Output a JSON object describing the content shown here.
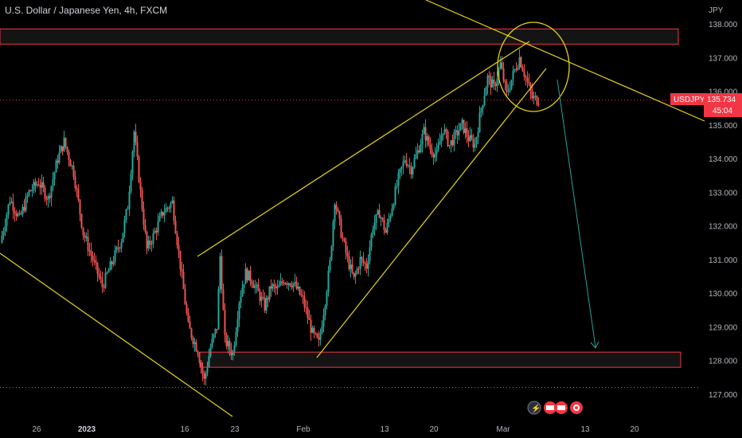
{
  "header": {
    "title": "U.S. Dollar / Japanese Yen, 4h, FXCM"
  },
  "colors": {
    "up": "#26a69a",
    "down": "#ef5350",
    "trend": "#e6d21a",
    "zone": "#f23645",
    "target": "#2aa198",
    "price": "#f23645"
  },
  "price_badge": {
    "symbol": "USDJPY",
    "price": "135.734",
    "countdown": "45:04"
  },
  "icons": [
    "lightning-icon",
    "flag-us-icon",
    "flag-us-icon",
    "target-icon"
  ],
  "chart_data": {
    "type": "candlestick",
    "symbol": "USDJPY",
    "timeframe": "4h",
    "y_unit": "JPY",
    "ylim": [
      126.7,
      138.3
    ],
    "y_ticks": [
      127.0,
      128.0,
      129.0,
      130.0,
      131.0,
      132.0,
      133.0,
      134.0,
      135.0,
      136.0,
      137.0,
      138.0
    ],
    "x_ticks": [
      {
        "label": "26",
        "bold": false
      },
      {
        "label": "2023",
        "bold": true
      },
      {
        "label": "16",
        "bold": false
      },
      {
        "label": "23",
        "bold": false
      },
      {
        "label": "Feb",
        "bold": false
      },
      {
        "label": "13",
        "bold": false
      },
      {
        "label": "20",
        "bold": false
      },
      {
        "label": "Mar",
        "bold": false
      },
      {
        "label": "13",
        "bold": false
      },
      {
        "label": "20",
        "bold": false
      }
    ],
    "current_price": 135.734,
    "horizontal_zones": [
      {
        "name": "resistance-zone",
        "low": 137.4,
        "high": 137.85
      },
      {
        "name": "support-zone",
        "low": 127.8,
        "high": 128.25
      }
    ],
    "price_path": [
      [
        0,
        131.5
      ],
      [
        6,
        132.8
      ],
      [
        12,
        132.2
      ],
      [
        18,
        133.0
      ],
      [
        24,
        133.3
      ],
      [
        30,
        132.8
      ],
      [
        36,
        134.0
      ],
      [
        40,
        134.5
      ],
      [
        46,
        133.6
      ],
      [
        52,
        131.8
      ],
      [
        58,
        131.0
      ],
      [
        64,
        130.2
      ],
      [
        70,
        130.9
      ],
      [
        76,
        131.6
      ],
      [
        80,
        132.6
      ],
      [
        84,
        134.8
      ],
      [
        88,
        133.0
      ],
      [
        92,
        131.3
      ],
      [
        96,
        131.7
      ],
      [
        102,
        132.4
      ],
      [
        108,
        132.7
      ],
      [
        112,
        131.2
      ],
      [
        118,
        129.0
      ],
      [
        124,
        128.3
      ],
      [
        128,
        127.4
      ],
      [
        132,
        128.4
      ],
      [
        136,
        129.0
      ],
      [
        138,
        131.1
      ],
      [
        141,
        128.6
      ],
      [
        146,
        128.2
      ],
      [
        150,
        129.8
      ],
      [
        154,
        130.6
      ],
      [
        158,
        130.4
      ],
      [
        162,
        130.0
      ],
      [
        166,
        129.6
      ],
      [
        170,
        130.2
      ],
      [
        174,
        130.1
      ],
      [
        178,
        130.4
      ],
      [
        184,
        130.3
      ],
      [
        190,
        129.8
      ],
      [
        196,
        128.8
      ],
      [
        200,
        128.5
      ],
      [
        204,
        129.8
      ],
      [
        207,
        130.9
      ],
      [
        210,
        132.8
      ],
      [
        214,
        131.8
      ],
      [
        218,
        131.0
      ],
      [
        222,
        130.4
      ],
      [
        226,
        131.0
      ],
      [
        230,
        130.8
      ],
      [
        234,
        132.0
      ],
      [
        238,
        132.4
      ],
      [
        242,
        131.8
      ],
      [
        246,
        132.6
      ],
      [
        250,
        133.4
      ],
      [
        254,
        134.0
      ],
      [
        258,
        133.7
      ],
      [
        262,
        134.2
      ],
      [
        266,
        134.8
      ],
      [
        270,
        134.3
      ],
      [
        274,
        134.1
      ],
      [
        278,
        134.9
      ],
      [
        282,
        134.4
      ],
      [
        286,
        134.7
      ],
      [
        290,
        135.0
      ],
      [
        294,
        134.6
      ],
      [
        298,
        134.4
      ],
      [
        302,
        135.5
      ],
      [
        306,
        136.4
      ],
      [
        310,
        136.1
      ],
      [
        314,
        136.8
      ],
      [
        318,
        135.9
      ],
      [
        322,
        136.5
      ],
      [
        326,
        137.0
      ],
      [
        330,
        136.4
      ],
      [
        334,
        135.8
      ],
      [
        338,
        135.73
      ]
    ]
  }
}
